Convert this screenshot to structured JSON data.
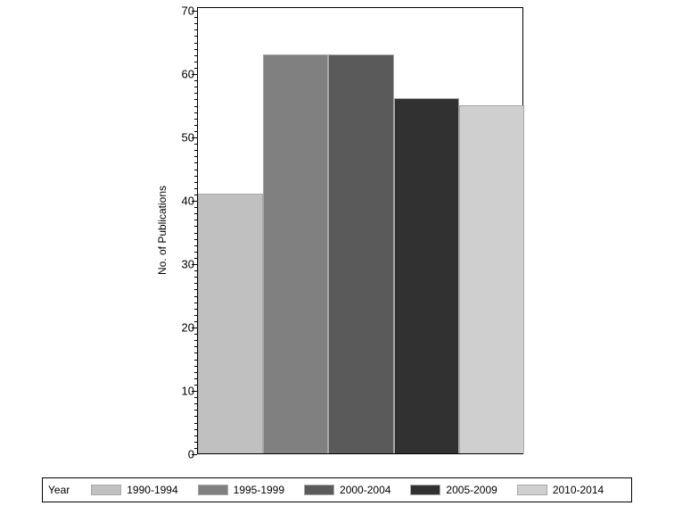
{
  "chart_data": {
    "type": "bar",
    "title": "",
    "xlabel": "",
    "ylabel": "No. of Publications",
    "ylim": [
      0,
      70
    ],
    "yticks": [
      0,
      10,
      20,
      30,
      40,
      50,
      60,
      70
    ],
    "yminor_step": 1,
    "grid": false,
    "legend_position": "bottom",
    "legend_title": "Year",
    "categories": [
      "1990-1994",
      "1995-1999",
      "2000-2004",
      "2005-2009",
      "2010-2014"
    ],
    "values": [
      41,
      63,
      63,
      56,
      55
    ],
    "colors": [
      "#c0c0c0",
      "#808080",
      "#5a5a5a",
      "#313131",
      "#cfcfcf"
    ]
  },
  "legend": {
    "title": "Year",
    "items": [
      {
        "label": "1990-1994",
        "color": "#c0c0c0"
      },
      {
        "label": "1995-1999",
        "color": "#808080"
      },
      {
        "label": "2000-2004",
        "color": "#5a5a5a"
      },
      {
        "label": "2005-2009",
        "color": "#313131"
      },
      {
        "label": "2010-2014",
        "color": "#cfcfcf"
      }
    ]
  },
  "axis": {
    "ylabel": "No. of Publications",
    "ticks": [
      "0",
      "10",
      "20",
      "30",
      "40",
      "50",
      "60",
      "70"
    ]
  }
}
